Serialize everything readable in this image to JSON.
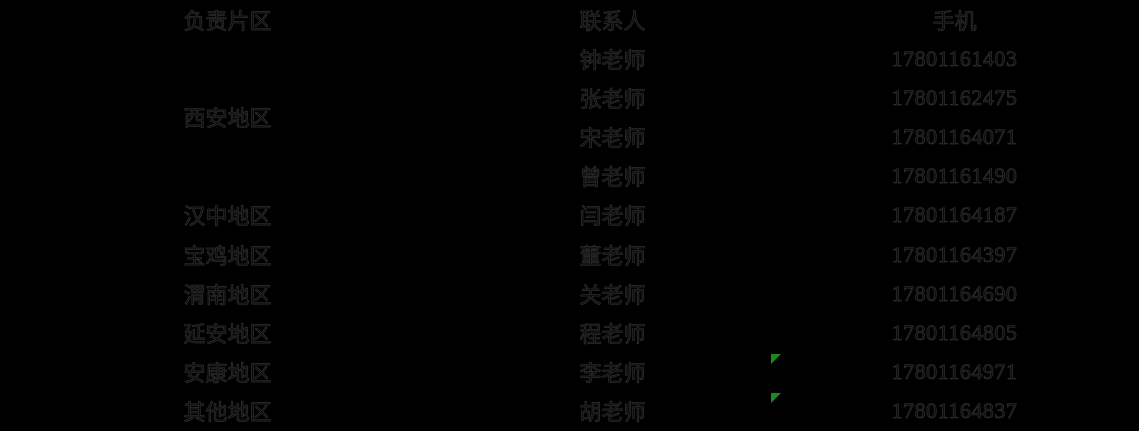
{
  "table": {
    "headers": {
      "area": "负责片区",
      "contact": "联系人",
      "phone": "手机"
    },
    "rows": [
      {
        "area": "西安地区",
        "area_rowspan": 4,
        "contact": "钟老师",
        "phone": "17801161403",
        "indicator": false
      },
      {
        "contact": "张老师",
        "phone": "17801162475",
        "indicator": false
      },
      {
        "contact": "宋老师",
        "phone": "17801164071",
        "indicator": false
      },
      {
        "contact": "曾老师",
        "phone": "17801161490",
        "indicator": false
      },
      {
        "area": "汉中地区",
        "area_rowspan": 1,
        "contact": "闫老师",
        "phone": "17801164187",
        "indicator": false
      },
      {
        "area": "宝鸡地区",
        "area_rowspan": 1,
        "contact": "董老师",
        "phone": "17801164397",
        "indicator": false
      },
      {
        "area": "渭南地区",
        "area_rowspan": 1,
        "contact": "关老师",
        "phone": "17801164690",
        "indicator": false
      },
      {
        "area": "延安地区",
        "area_rowspan": 1,
        "contact": "程老师",
        "phone": "17801164805",
        "indicator": false
      },
      {
        "area": "安康地区",
        "area_rowspan": 1,
        "contact": "李老师",
        "phone": "17801164971",
        "indicator": true
      },
      {
        "area": "其他地区",
        "area_rowspan": 1,
        "contact": "胡老师",
        "phone": "17801164837",
        "indicator": true
      }
    ],
    "colors": {
      "background": "#000000",
      "text": "#0c0c0c",
      "text_edge": "#343434",
      "indicator_green": "#1e8a1e"
    },
    "indicator_meaning": "number-stored-as-text-indicator"
  }
}
